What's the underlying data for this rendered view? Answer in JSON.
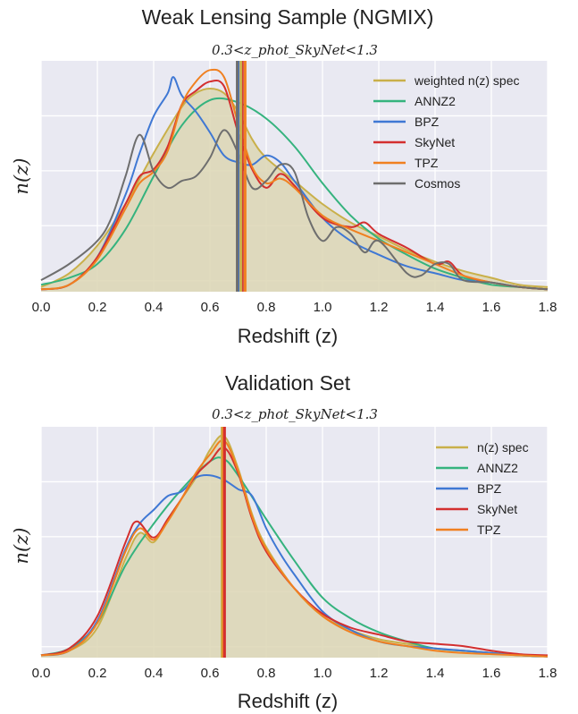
{
  "chart_data": [
    {
      "type": "line",
      "title": "Weak Lensing Sample (NGMIX)",
      "subtitle": "0.3<z_phot_SkyNet<1.3",
      "xlabel": "Redshift (z)",
      "ylabel": "n(z)",
      "xlim": [
        0.0,
        1.8
      ],
      "ylim": [
        0,
        1.0
      ],
      "xticks": [
        "0.0",
        "0.2",
        "0.4",
        "0.6",
        "0.8",
        "1.0",
        "1.2",
        "1.4",
        "1.6",
        "1.8"
      ],
      "grid": true,
      "legend_position": "top-right",
      "series": [
        {
          "name": "weighted n(z) spec",
          "color": "#c9b04a",
          "filled": true,
          "x": [
            0.0,
            0.1,
            0.2,
            0.3,
            0.4,
            0.5,
            0.55,
            0.6,
            0.65,
            0.7,
            0.75,
            0.8,
            0.9,
            1.0,
            1.1,
            1.2,
            1.3,
            1.4,
            1.5,
            1.6,
            1.7,
            1.8
          ],
          "y": [
            0.02,
            0.08,
            0.2,
            0.38,
            0.6,
            0.8,
            0.86,
            0.88,
            0.86,
            0.78,
            0.66,
            0.58,
            0.48,
            0.38,
            0.3,
            0.24,
            0.18,
            0.13,
            0.09,
            0.06,
            0.03,
            0.02
          ]
        },
        {
          "name": "ANNZ2",
          "color": "#35b37e",
          "x": [
            0.0,
            0.1,
            0.2,
            0.3,
            0.4,
            0.5,
            0.6,
            0.7,
            0.8,
            0.9,
            1.0,
            1.1,
            1.2,
            1.3,
            1.4,
            1.5,
            1.6,
            1.7,
            1.8
          ],
          "y": [
            0.03,
            0.06,
            0.12,
            0.27,
            0.5,
            0.72,
            0.83,
            0.82,
            0.75,
            0.63,
            0.47,
            0.33,
            0.23,
            0.16,
            0.1,
            0.06,
            0.03,
            0.02,
            0.01
          ],
          "position": "top-left"
        },
        {
          "name": "BPZ",
          "color": "#3f78d4",
          "x": [
            0.0,
            0.1,
            0.2,
            0.3,
            0.35,
            0.4,
            0.45,
            0.47,
            0.5,
            0.55,
            0.6,
            0.65,
            0.7,
            0.75,
            0.8,
            0.85,
            0.9,
            1.0,
            1.1,
            1.2,
            1.3,
            1.4,
            1.5,
            1.6,
            1.7,
            1.8
          ],
          "y": [
            0.01,
            0.03,
            0.15,
            0.42,
            0.6,
            0.76,
            0.86,
            0.93,
            0.85,
            0.78,
            0.69,
            0.59,
            0.56,
            0.55,
            0.59,
            0.56,
            0.48,
            0.32,
            0.22,
            0.16,
            0.11,
            0.08,
            0.05,
            0.04,
            0.02,
            0.01
          ]
        },
        {
          "name": "SkyNet",
          "color": "#d32f2f",
          "x": [
            0.0,
            0.1,
            0.2,
            0.3,
            0.35,
            0.4,
            0.45,
            0.5,
            0.55,
            0.6,
            0.65,
            0.7,
            0.75,
            0.8,
            0.85,
            0.9,
            1.0,
            1.1,
            1.15,
            1.2,
            1.3,
            1.4,
            1.45,
            1.5,
            1.6,
            1.7,
            1.8
          ],
          "y": [
            0.01,
            0.03,
            0.15,
            0.38,
            0.5,
            0.53,
            0.63,
            0.81,
            0.87,
            0.91,
            0.89,
            0.69,
            0.53,
            0.45,
            0.51,
            0.46,
            0.32,
            0.28,
            0.3,
            0.25,
            0.19,
            0.12,
            0.13,
            0.07,
            0.04,
            0.02,
            0.01
          ]
        },
        {
          "name": "TPZ",
          "color": "#f08020",
          "x": [
            0.0,
            0.1,
            0.2,
            0.3,
            0.35,
            0.4,
            0.45,
            0.5,
            0.55,
            0.6,
            0.65,
            0.7,
            0.75,
            0.8,
            0.85,
            0.9,
            1.0,
            1.1,
            1.2,
            1.3,
            1.4,
            1.5,
            1.6,
            1.7,
            1.8
          ],
          "y": [
            0.01,
            0.03,
            0.14,
            0.36,
            0.47,
            0.52,
            0.61,
            0.81,
            0.91,
            0.96,
            0.93,
            0.73,
            0.54,
            0.47,
            0.49,
            0.45,
            0.33,
            0.27,
            0.22,
            0.17,
            0.12,
            0.07,
            0.04,
            0.02,
            0.01
          ]
        },
        {
          "name": "Cosmos",
          "color": "#6e6e6e",
          "x": [
            0.0,
            0.1,
            0.2,
            0.25,
            0.3,
            0.35,
            0.4,
            0.45,
            0.5,
            0.55,
            0.6,
            0.65,
            0.7,
            0.75,
            0.8,
            0.85,
            0.9,
            0.95,
            1.0,
            1.05,
            1.1,
            1.15,
            1.2,
            1.3,
            1.35,
            1.4,
            1.45,
            1.5,
            1.6,
            1.7,
            1.8
          ],
          "y": [
            0.05,
            0.12,
            0.22,
            0.32,
            0.5,
            0.68,
            0.52,
            0.45,
            0.48,
            0.5,
            0.58,
            0.7,
            0.6,
            0.45,
            0.48,
            0.55,
            0.52,
            0.32,
            0.22,
            0.28,
            0.25,
            0.17,
            0.22,
            0.08,
            0.07,
            0.12,
            0.12,
            0.05,
            0.04,
            0.02,
            0.01
          ]
        }
      ],
      "vertical_lines": [
        {
          "name": "BPZ mean",
          "x": 0.7,
          "color": "#3f78d4"
        },
        {
          "name": "TPZ mean",
          "x": 0.725,
          "color": "#f08020"
        },
        {
          "name": "SkyNet mean",
          "x": 0.715,
          "color": "#d32f2f"
        },
        {
          "name": "spec mean",
          "x": 0.71,
          "color": "#c9b04a"
        },
        {
          "name": "Cosmos mean",
          "x": 0.697,
          "color": "#6e6e6e"
        }
      ]
    },
    {
      "type": "line",
      "title": "Validation Set",
      "subtitle": "0.3<z_phot_SkyNet<1.3",
      "xlabel": "Redshift (z)",
      "ylabel": "n(z)",
      "xlim": [
        0.0,
        1.8
      ],
      "ylim": [
        0,
        1.0
      ],
      "xticks": [
        "0.0",
        "0.2",
        "0.4",
        "0.6",
        "0.8",
        "1.0",
        "1.2",
        "1.4",
        "1.6",
        "1.8"
      ],
      "grid": true,
      "legend_position": "top-right",
      "series": [
        {
          "name": "n(z) spec",
          "color": "#c9b04a",
          "filled": true,
          "x": [
            0.0,
            0.1,
            0.2,
            0.3,
            0.35,
            0.4,
            0.45,
            0.5,
            0.55,
            0.6,
            0.65,
            0.7,
            0.75,
            0.8,
            0.9,
            1.0,
            1.1,
            1.2,
            1.3,
            1.4,
            1.5,
            1.6,
            1.7,
            1.8
          ],
          "y": [
            0.01,
            0.03,
            0.13,
            0.43,
            0.54,
            0.5,
            0.6,
            0.69,
            0.78,
            0.9,
            0.96,
            0.82,
            0.62,
            0.48,
            0.3,
            0.18,
            0.12,
            0.08,
            0.06,
            0.04,
            0.03,
            0.02,
            0.01,
            0.005
          ]
        },
        {
          "name": "ANNZ2",
          "color": "#35b37e",
          "x": [
            0.0,
            0.1,
            0.2,
            0.3,
            0.4,
            0.5,
            0.6,
            0.65,
            0.7,
            0.8,
            0.9,
            1.0,
            1.1,
            1.2,
            1.3,
            1.4,
            1.5,
            1.6,
            1.7,
            1.8
          ],
          "y": [
            0.01,
            0.04,
            0.15,
            0.4,
            0.58,
            0.73,
            0.85,
            0.86,
            0.79,
            0.6,
            0.42,
            0.26,
            0.17,
            0.11,
            0.07,
            0.04,
            0.03,
            0.02,
            0.01,
            0.005
          ]
        },
        {
          "name": "BPZ",
          "color": "#3f78d4",
          "x": [
            0.0,
            0.1,
            0.2,
            0.3,
            0.35,
            0.4,
            0.45,
            0.5,
            0.55,
            0.6,
            0.65,
            0.7,
            0.75,
            0.8,
            0.85,
            0.9,
            1.0,
            1.1,
            1.2,
            1.3,
            1.4,
            1.5,
            1.6,
            1.7,
            1.8
          ],
          "y": [
            0.01,
            0.03,
            0.16,
            0.47,
            0.58,
            0.64,
            0.7,
            0.72,
            0.78,
            0.79,
            0.77,
            0.73,
            0.7,
            0.56,
            0.45,
            0.36,
            0.2,
            0.12,
            0.07,
            0.05,
            0.04,
            0.03,
            0.02,
            0.01,
            0.005
          ]
        },
        {
          "name": "SkyNet",
          "color": "#d32f2f",
          "x": [
            0.0,
            0.1,
            0.2,
            0.3,
            0.34,
            0.4,
            0.45,
            0.5,
            0.55,
            0.6,
            0.65,
            0.7,
            0.75,
            0.8,
            0.9,
            1.0,
            1.1,
            1.2,
            1.3,
            1.4,
            1.5,
            1.6,
            1.7,
            1.8
          ],
          "y": [
            0.01,
            0.04,
            0.18,
            0.5,
            0.59,
            0.52,
            0.6,
            0.69,
            0.79,
            0.85,
            0.91,
            0.8,
            0.6,
            0.46,
            0.3,
            0.19,
            0.13,
            0.1,
            0.07,
            0.06,
            0.05,
            0.03,
            0.015,
            0.01
          ]
        },
        {
          "name": "TPZ",
          "color": "#f08020",
          "x": [
            0.0,
            0.1,
            0.2,
            0.3,
            0.35,
            0.4,
            0.45,
            0.5,
            0.55,
            0.6,
            0.65,
            0.7,
            0.75,
            0.8,
            0.9,
            1.0,
            1.1,
            1.2,
            1.3,
            1.4,
            1.5,
            1.6,
            1.7,
            1.8
          ],
          "y": [
            0.01,
            0.03,
            0.15,
            0.46,
            0.56,
            0.51,
            0.59,
            0.69,
            0.8,
            0.88,
            0.94,
            0.81,
            0.61,
            0.47,
            0.3,
            0.18,
            0.11,
            0.07,
            0.05,
            0.03,
            0.02,
            0.015,
            0.01,
            0.005
          ]
        }
      ],
      "vertical_lines": [
        {
          "name": "spec mean",
          "x": 0.643,
          "color": "#c9b04a"
        },
        {
          "name": "TPZ mean",
          "x": 0.648,
          "color": "#f08020"
        },
        {
          "name": "SkyNet mean",
          "x": 0.652,
          "color": "#d32f2f"
        }
      ]
    }
  ]
}
